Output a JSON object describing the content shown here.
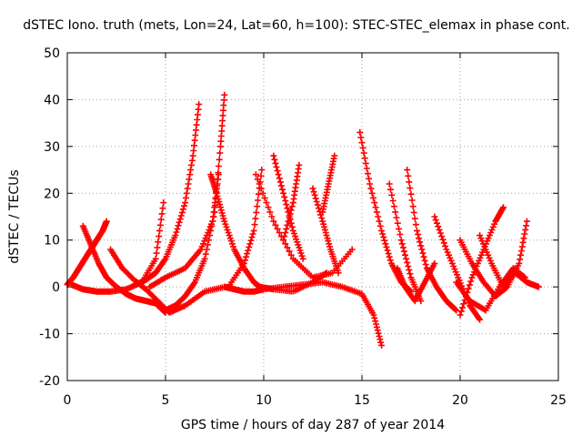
{
  "chart_data": {
    "type": "scatter",
    "title": "dSTEC Iono. truth (mets, Lon=24, Lat=60, h=100): STEC-STEC_elemax in phase cont.",
    "xlabel": "GPS time / hours of day 287 of year 2014",
    "ylabel": "dSTEC  / TECUs",
    "xlim": [
      0,
      25
    ],
    "ylim": [
      -20,
      50
    ],
    "x_ticks": [
      0,
      5,
      10,
      15,
      20,
      25
    ],
    "y_ticks": [
      -20,
      -10,
      0,
      10,
      20,
      30,
      40,
      50
    ],
    "grid": true,
    "marker": "plus",
    "color": "#ff0000",
    "series": [
      {
        "x": [
          0.0,
          0.3,
          0.6,
          0.9,
          1.2,
          1.5,
          1.8,
          2.0
        ],
        "y": [
          0.5,
          2,
          4,
          6,
          8,
          10,
          12,
          14
        ]
      },
      {
        "x": [
          0.8,
          1.2,
          1.6,
          2.0,
          2.5,
          3.0,
          3.5,
          4.0,
          4.5,
          5.0
        ],
        "y": [
          13,
          9,
          5,
          2,
          0,
          -1.5,
          -2.5,
          -3,
          -3.5,
          -5.5
        ]
      },
      {
        "x": [
          0.2,
          0.8,
          1.5,
          2.2,
          3.0,
          3.8,
          4.5,
          4.9
        ],
        "y": [
          0.5,
          -0.5,
          -1,
          -1,
          -0.5,
          1,
          6,
          18
        ]
      },
      {
        "x": [
          2.2,
          2.8,
          3.4,
          4.0,
          4.6,
          5.2,
          6.0,
          7.0,
          8.0
        ],
        "y": [
          8,
          4,
          1.5,
          -0.5,
          -3,
          -5.5,
          -4,
          -1,
          0
        ]
      },
      {
        "x": [
          3.5,
          4.0,
          4.5,
          5.0,
          5.5,
          6.0,
          6.4,
          6.7
        ],
        "y": [
          0.5,
          1.5,
          3,
          6,
          11,
          18,
          28,
          39
        ]
      },
      {
        "x": [
          5.0,
          5.5,
          6.0,
          6.5,
          7.0,
          7.5,
          7.8,
          8.0
        ],
        "y": [
          -5,
          -4,
          -2,
          1,
          6,
          16,
          30,
          41
        ]
      },
      {
        "x": [
          4.2,
          5.0,
          6.0,
          6.8,
          7.4,
          7.7
        ],
        "y": [
          0,
          2,
          4,
          8,
          14,
          24
        ]
      },
      {
        "x": [
          7.3,
          7.6,
          8.0,
          8.5,
          9.0,
          9.5,
          9.8,
          10.5,
          11.5,
          12.5,
          13.2
        ],
        "y": [
          24,
          20,
          14,
          8,
          4,
          1,
          0,
          -0.5,
          -1,
          1,
          3
        ]
      },
      {
        "x": [
          8.2,
          9.0,
          9.5,
          9.9
        ],
        "y": [
          0,
          5,
          12,
          25
        ]
      },
      {
        "x": [
          8.0,
          8.5,
          9.0,
          9.5,
          10.0,
          11.0,
          12.0,
          13.0,
          14.0,
          15.0,
          15.6,
          16.0
        ],
        "y": [
          0,
          -0.5,
          -1,
          -1,
          -0.5,
          0,
          0.5,
          1,
          0,
          -1.5,
          -6,
          -12.5
        ]
      },
      {
        "x": [
          9.6,
          10.5,
          11.5,
          12.5,
          13.5,
          14.5
        ],
        "y": [
          24,
          14,
          6,
          2,
          3,
          8
        ]
      },
      {
        "x": [
          10.5,
          11.0,
          11.5,
          12.0
        ],
        "y": [
          28,
          20,
          12,
          6
        ]
      },
      {
        "x": [
          11.0,
          11.5,
          11.8
        ],
        "y": [
          10,
          18,
          26
        ]
      },
      {
        "x": [
          12.5,
          13.0,
          13.4,
          13.8
        ],
        "y": [
          21,
          14,
          8,
          3
        ]
      },
      {
        "x": [
          13.0,
          13.3,
          13.6
        ],
        "y": [
          16,
          22,
          28
        ]
      },
      {
        "x": [
          14.9,
          15.4,
          16.0,
          16.5,
          17.0,
          17.5
        ],
        "y": [
          33,
          22,
          12,
          5,
          1,
          -1
        ]
      },
      {
        "x": [
          16.4,
          17.0,
          17.5,
          18.0
        ],
        "y": [
          22,
          10,
          2,
          -3
        ]
      },
      {
        "x": [
          17.3,
          17.8,
          18.3,
          18.8,
          19.3,
          19.8
        ],
        "y": [
          25,
          12,
          4,
          0,
          -3,
          -5
        ]
      },
      {
        "x": [
          18.7,
          19.3,
          19.9,
          20.5,
          21.0
        ],
        "y": [
          15,
          8,
          2,
          -4,
          -7
        ]
      },
      {
        "x": [
          20.0,
          20.6,
          21.2,
          21.8,
          22.2
        ],
        "y": [
          -6,
          2,
          8,
          14,
          17
        ]
      },
      {
        "x": [
          20.0,
          20.6,
          21.2,
          21.8,
          22.4,
          23.0,
          23.4
        ],
        "y": [
          10,
          5,
          1,
          -2,
          0,
          5,
          14
        ]
      },
      {
        "x": [
          21.0,
          21.6,
          22.2,
          22.8,
          23.4,
          24.0
        ],
        "y": [
          11,
          5,
          0,
          3,
          1,
          0
        ]
      },
      {
        "x": [
          19.8,
          20.5,
          21.3,
          22.0,
          22.7,
          23.3
        ],
        "y": [
          1,
          -3,
          -5,
          0,
          4,
          2
        ]
      },
      {
        "x": [
          16.8,
          17.2,
          17.7,
          18.2,
          18.7
        ],
        "y": [
          4,
          0,
          -3,
          1,
          5
        ]
      }
    ]
  }
}
